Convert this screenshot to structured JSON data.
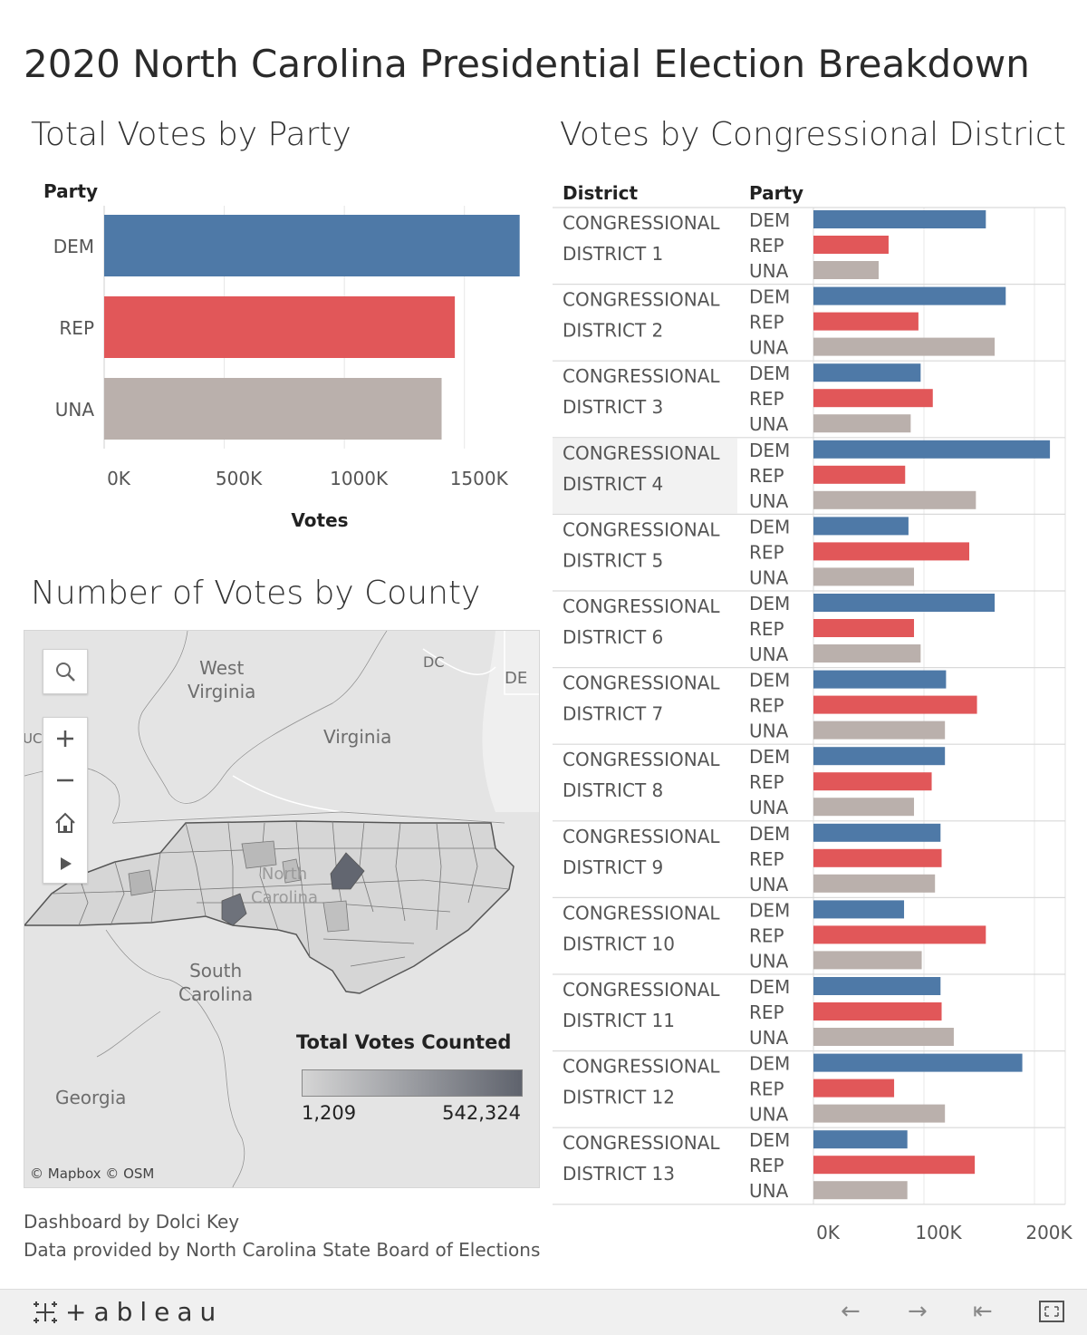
{
  "title": "2020 North Carolina Presidential Election Breakdown",
  "total_votes_section": {
    "title": "Total Votes by Party"
  },
  "district_section": {
    "title": "Votes by Congressional District"
  },
  "county_section": {
    "title": "Number of Votes by County"
  },
  "map": {
    "labels": {
      "west_virginia": "West\nVirginia",
      "virginia": "Virginia",
      "south_carolina": "South\nCarolina",
      "georgia": "Georgia",
      "dc": "DC",
      "de": "DE",
      "kentucky_partial": "UCKY",
      "north_carolina_faint": "North\nCarolina"
    },
    "controls": [
      "search-icon",
      "zoom-in-icon",
      "zoom-out-icon",
      "home-icon",
      "play-icon"
    ],
    "legend": {
      "title": "Total Votes Counted",
      "min": "1,209",
      "max": "542,324",
      "color_low": "#d5d5d5",
      "color_high": "#5f636d"
    },
    "credits": "© Mapbox  © OSM"
  },
  "footer": {
    "line1": "Dashboard by Dolci Key",
    "line2": "Data provided by North Carolina State Board of Elections"
  },
  "toolbar": {
    "logo": "+ableau",
    "icons": [
      "back-arrow-icon",
      "forward-arrow-icon",
      "reset-icon",
      "fullscreen-icon"
    ]
  },
  "colors": {
    "DEM": "#4e79a7",
    "REP": "#e15759",
    "UNA": "#bab0ac"
  },
  "chart_data": [
    {
      "type": "bar",
      "orientation": "horizontal",
      "title": "Total Votes by Party",
      "row_header": "Party",
      "categories": [
        "DEM",
        "REP",
        "UNA"
      ],
      "values": [
        1730000,
        1460000,
        1405000
      ],
      "xlabel": "Votes",
      "ylabel": "Party",
      "xlim": [
        0,
        1750000
      ],
      "xticks": [
        0,
        500000,
        1000000,
        1500000
      ],
      "xtick_labels": [
        "0K",
        "500K",
        "1000K",
        "1500K"
      ],
      "grid": true
    },
    {
      "type": "bar",
      "orientation": "horizontal",
      "title": "Votes by Congressional District",
      "row_headers": [
        "District",
        "Party"
      ],
      "parties": [
        "DEM",
        "REP",
        "UNA"
      ],
      "districts": [
        {
          "label": [
            "CONGRESSIONAL",
            "DISTRICT 1"
          ],
          "values": [
            156000,
            68000,
            59000
          ]
        },
        {
          "label": [
            "CONGRESSIONAL",
            "DISTRICT 2"
          ],
          "values": [
            174000,
            95000,
            164000
          ]
        },
        {
          "label": [
            "CONGRESSIONAL",
            "DISTRICT 3"
          ],
          "values": [
            97000,
            108000,
            88000
          ]
        },
        {
          "label": [
            "CONGRESSIONAL",
            "DISTRICT 4"
          ],
          "values": [
            214000,
            83000,
            147000
          ],
          "highlighted": true
        },
        {
          "label": [
            "CONGRESSIONAL",
            "DISTRICT 5"
          ],
          "values": [
            86000,
            141000,
            91000
          ]
        },
        {
          "label": [
            "CONGRESSIONAL",
            "DISTRICT 6"
          ],
          "values": [
            164000,
            91000,
            97000
          ]
        },
        {
          "label": [
            "CONGRESSIONAL",
            "DISTRICT 7"
          ],
          "values": [
            120000,
            148000,
            119000
          ]
        },
        {
          "label": [
            "CONGRESSIONAL",
            "DISTRICT 8"
          ],
          "values": [
            119000,
            107000,
            91000
          ]
        },
        {
          "label": [
            "CONGRESSIONAL",
            "DISTRICT 9"
          ],
          "values": [
            115000,
            116000,
            110000
          ]
        },
        {
          "label": [
            "CONGRESSIONAL",
            "DISTRICT 10"
          ],
          "values": [
            82000,
            156000,
            98000
          ]
        },
        {
          "label": [
            "CONGRESSIONAL",
            "DISTRICT 11"
          ],
          "values": [
            115000,
            116000,
            127000
          ]
        },
        {
          "label": [
            "CONGRESSIONAL",
            "DISTRICT 12"
          ],
          "values": [
            189000,
            73000,
            119000
          ]
        },
        {
          "label": [
            "CONGRESSIONAL",
            "DISTRICT 13"
          ],
          "values": [
            85000,
            146000,
            85000
          ]
        }
      ],
      "xlim": [
        0,
        225000
      ],
      "xticks": [
        0,
        100000,
        200000
      ],
      "xtick_labels": [
        "0K",
        "100K",
        "200K"
      ],
      "grid": true
    }
  ]
}
